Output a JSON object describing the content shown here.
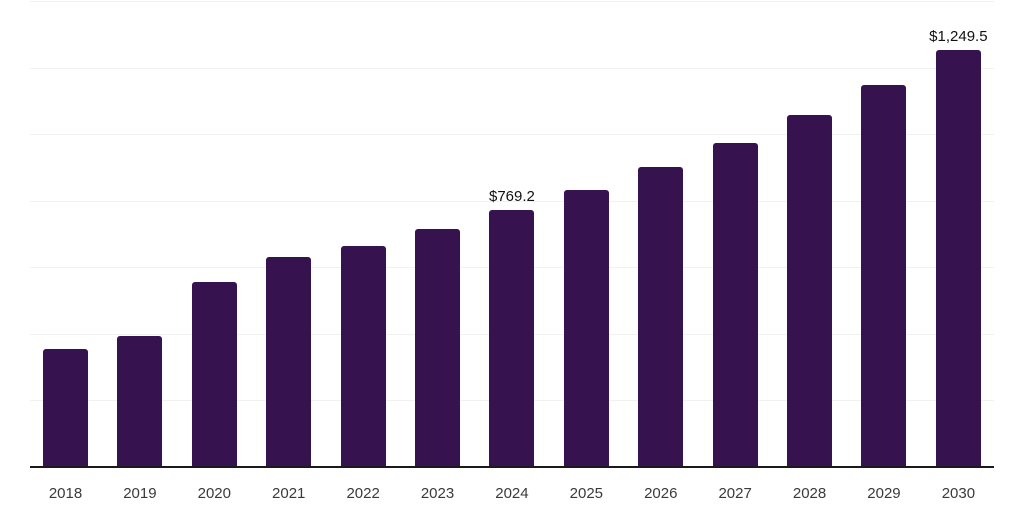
{
  "chart_data": {
    "type": "bar",
    "title": "",
    "xlabel": "",
    "ylabel": "",
    "ylim": [
      0,
      1400
    ],
    "gridline_step": 200,
    "grid": "horizontal",
    "legend": "none",
    "points": [
      {
        "year": "2018",
        "value": 352
      },
      {
        "year": "2019",
        "value": 390
      },
      {
        "year": "2020",
        "value": 553
      },
      {
        "year": "2021",
        "value": 628
      },
      {
        "year": "2022",
        "value": 661
      },
      {
        "year": "2023",
        "value": 712
      },
      {
        "year": "2024",
        "value": 769.2,
        "label": "$769.2"
      },
      {
        "year": "2025",
        "value": 828
      },
      {
        "year": "2026",
        "value": 897
      },
      {
        "year": "2027",
        "value": 971
      },
      {
        "year": "2028",
        "value": 1055
      },
      {
        "year": "2029",
        "value": 1144
      },
      {
        "year": "2030",
        "value": 1249.5,
        "label": "$1,249.5"
      }
    ],
    "colors": {
      "bar": "#36124e",
      "axis": "#1a1a1a",
      "gridline": "#f1f1f1",
      "value_label": "#111111",
      "tick_label": "#3a3a3a",
      "background": "#ffffff"
    }
  }
}
